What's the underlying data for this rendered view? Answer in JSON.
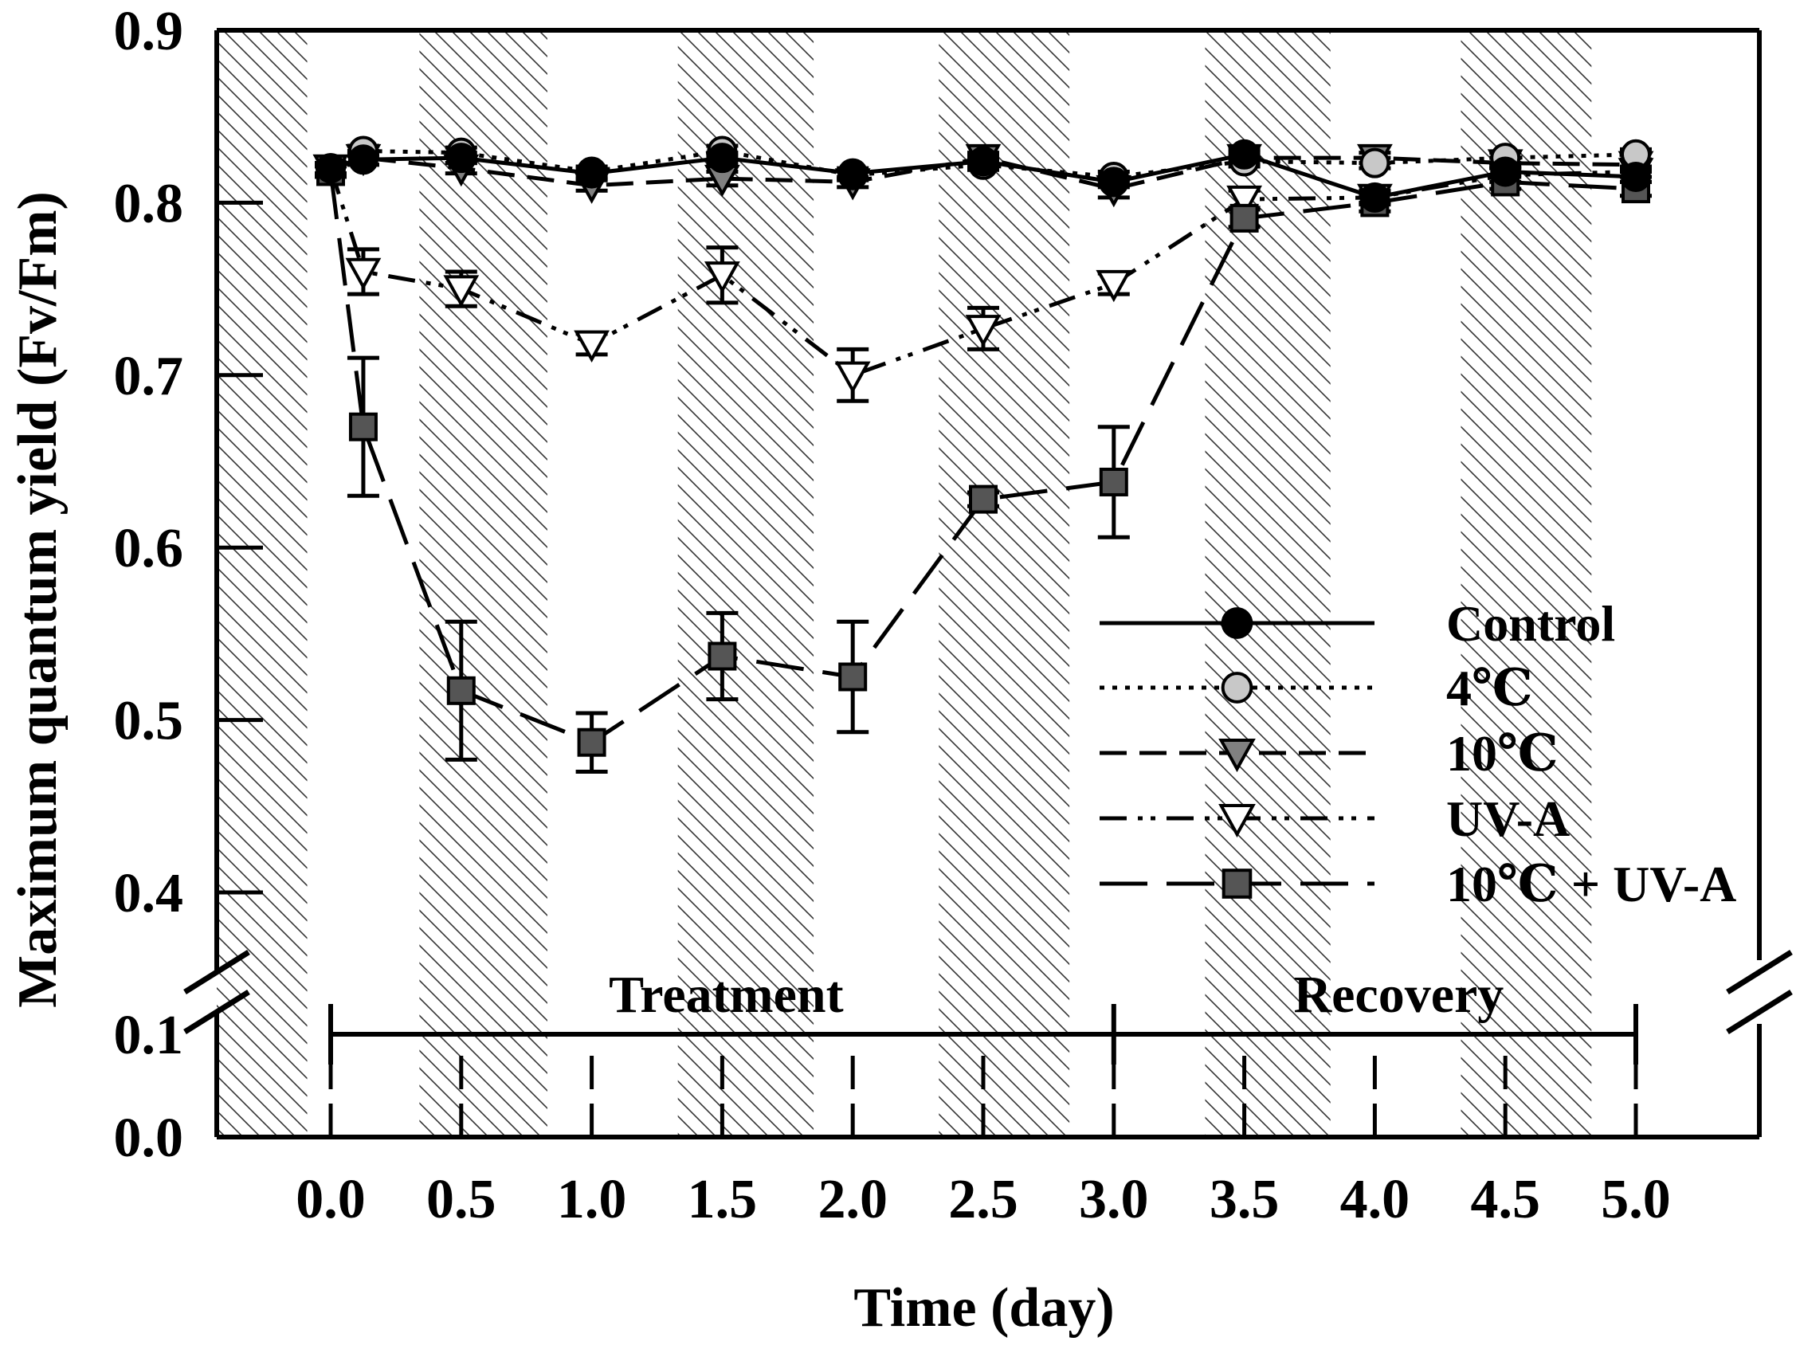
{
  "chart_data": {
    "type": "line",
    "xlabel": "Time (day)",
    "ylabel": "Maximum quantum yield (Fv/Fm)",
    "x_ticks": [
      "0.0",
      "0.5",
      "1.0",
      "1.5",
      "2.0",
      "2.5",
      "3.0",
      "3.5",
      "4.0",
      "4.5",
      "5.0"
    ],
    "y_ticks_upper": [
      "0.4",
      "0.5",
      "0.6",
      "0.7",
      "0.8",
      "0.9"
    ],
    "y_ticks_lower": [
      "0.0",
      "0.1"
    ],
    "xlim": [
      -0.44,
      5.44
    ],
    "ylim_upper": [
      0.35,
      0.9
    ],
    "ylim_lower": [
      0.0,
      0.1
    ],
    "y_axis_break": true,
    "dark_periods": [
      [
        -0.44,
        -0.09
      ],
      [
        0.34,
        0.83
      ],
      [
        1.33,
        1.85
      ],
      [
        2.33,
        2.83
      ],
      [
        3.35,
        3.83
      ],
      [
        4.33,
        4.83
      ]
    ],
    "phases": [
      {
        "label": "Treatment",
        "start": 0.0,
        "end": 3.0
      },
      {
        "label": "Recovery",
        "start": 3.0,
        "end": 5.0
      }
    ],
    "legend_position": "lower-right",
    "series": [
      {
        "name": "Control",
        "marker": "circle",
        "fill": "#000000",
        "dash": "solid",
        "x": [
          0.0,
          0.125,
          0.5,
          1.0,
          1.5,
          2.0,
          2.5,
          3.0,
          3.5,
          4.0,
          4.5,
          5.0
        ],
        "y": [
          0.82,
          0.825,
          0.826,
          0.817,
          0.826,
          0.817,
          0.824,
          0.812,
          0.828,
          0.803,
          0.818,
          0.815
        ],
        "err": [
          0.003,
          0.003,
          0.003,
          0.003,
          0.003,
          0.003,
          0.003,
          0.003,
          0.003,
          0.003,
          0.003,
          0.003
        ]
      },
      {
        "name": "4℃",
        "marker": "circle",
        "fill": "#c8c8c8",
        "dash": "dotted",
        "x": [
          0.0,
          0.125,
          0.5,
          1.0,
          1.5,
          2.0,
          2.5,
          3.0,
          3.5,
          4.0,
          4.5,
          5.0
        ],
        "y": [
          0.82,
          0.83,
          0.829,
          0.818,
          0.83,
          0.816,
          0.822,
          0.815,
          0.824,
          0.823,
          0.826,
          0.828
        ],
        "err": [
          0.003,
          0.003,
          0.003,
          0.003,
          0.003,
          0.003,
          0.003,
          0.003,
          0.003,
          0.003,
          0.003,
          0.003
        ]
      },
      {
        "name": "10℃",
        "marker": "triangle-down",
        "fill": "#808080",
        "dash": "dashed",
        "x": [
          0.0,
          0.125,
          0.5,
          1.0,
          1.5,
          2.0,
          2.5,
          3.0,
          3.5,
          4.0,
          4.5,
          5.0
        ],
        "y": [
          0.82,
          0.826,
          0.82,
          0.81,
          0.814,
          0.812,
          0.826,
          0.808,
          0.826,
          0.826,
          0.823,
          0.822
        ],
        "err": [
          0.003,
          0.004,
          0.003,
          0.003,
          0.004,
          0.003,
          0.003,
          0.005,
          0.003,
          0.003,
          0.003,
          0.003
        ]
      },
      {
        "name": "UV-A",
        "marker": "triangle-down",
        "fill": "#ffffff",
        "dash": "dash-dot-dot",
        "x": [
          0.0,
          0.125,
          0.5,
          1.0,
          1.5,
          2.0,
          2.5,
          3.0,
          3.5,
          4.0,
          4.5,
          5.0
        ],
        "y": [
          0.82,
          0.76,
          0.75,
          0.718,
          0.758,
          0.7,
          0.727,
          0.753,
          0.802,
          0.803,
          0.816,
          0.818
        ],
        "err": [
          0.003,
          0.013,
          0.01,
          0.006,
          0.016,
          0.015,
          0.012,
          0.006,
          0.005,
          0.004,
          0.004,
          0.003
        ]
      },
      {
        "name": "10℃ + UV-A",
        "marker": "square",
        "fill": "#555555",
        "dash": "long-dash",
        "x": [
          0.0,
          0.125,
          0.5,
          1.0,
          1.5,
          2.0,
          2.5,
          3.0,
          3.5,
          4.0,
          4.5,
          5.0
        ],
        "y": [
          0.818,
          0.67,
          0.517,
          0.487,
          0.537,
          0.525,
          0.628,
          0.638,
          0.791,
          0.8,
          0.812,
          0.808
        ],
        "err": [
          0.003,
          0.04,
          0.04,
          0.017,
          0.025,
          0.032,
          0.004,
          0.032,
          0.005,
          0.005,
          0.004,
          0.004
        ]
      }
    ]
  }
}
